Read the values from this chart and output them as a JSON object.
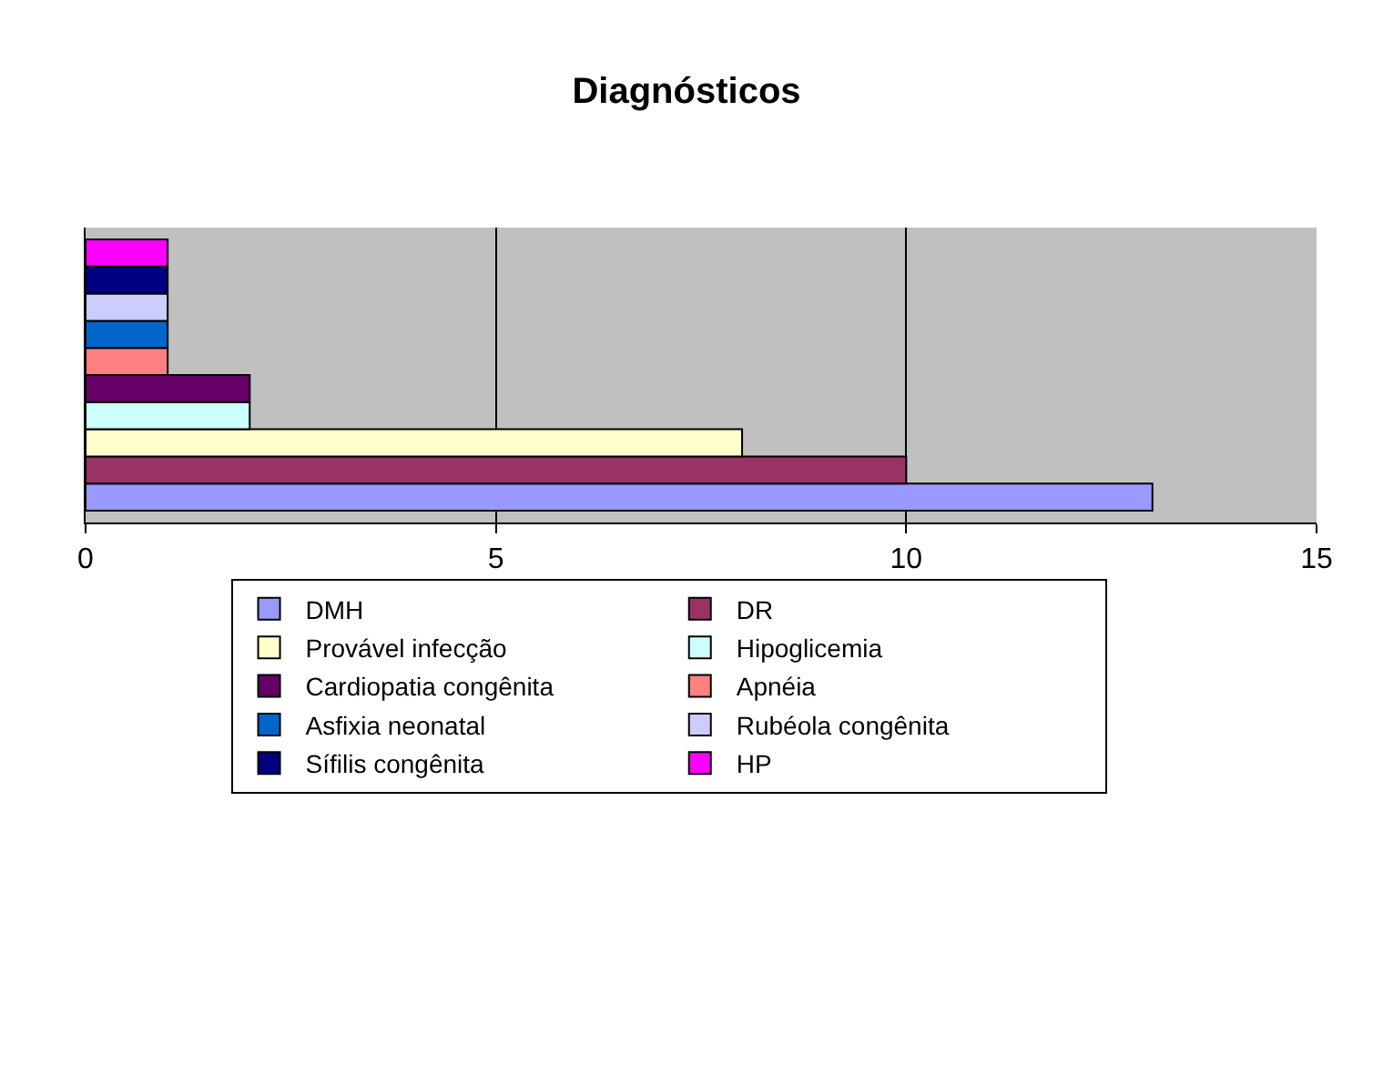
{
  "chart_data": {
    "type": "bar",
    "title": "Diagnósticos",
    "orientation": "horizontal",
    "categories": [
      null
    ],
    "series": [
      {
        "name": "DMH",
        "color": "#9999ff",
        "values": [
          13
        ]
      },
      {
        "name": "DR",
        "color": "#993366",
        "values": [
          10
        ]
      },
      {
        "name": "Provável infecção",
        "color": "#ffffcc",
        "values": [
          8
        ]
      },
      {
        "name": "Hipoglicemia",
        "color": "#ccffff",
        "values": [
          2
        ]
      },
      {
        "name": "Cardiopatia congênita",
        "color": "#660066",
        "values": [
          2
        ]
      },
      {
        "name": "Apnéia",
        "color": "#ff8080",
        "values": [
          1
        ]
      },
      {
        "name": "Asfixia neonatal",
        "color": "#0066cc",
        "values": [
          1
        ]
      },
      {
        "name": "Rubéola congênita",
        "color": "#ccccff",
        "values": [
          1
        ]
      },
      {
        "name": "Sífilis congênita",
        "color": "#000080",
        "values": [
          1
        ]
      },
      {
        "name": "HP",
        "color": "#ff00ff",
        "values": [
          1
        ]
      }
    ],
    "xlim": [
      0,
      15
    ],
    "xticks": [
      0,
      5,
      10,
      15
    ],
    "grid": "x",
    "legend": "bottom",
    "tick_labels": "x"
  }
}
